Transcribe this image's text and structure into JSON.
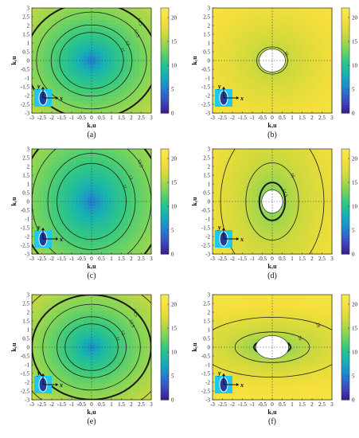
{
  "colors": {
    "colormap": [
      "#3e1b8c",
      "#3b4fc7",
      "#1f8ad0",
      "#17b3b0",
      "#35c97f",
      "#86d556",
      "#cfd93d",
      "#f5df3a",
      "#f7ea4e"
    ],
    "background": "#ffffff",
    "contour_line": "#1a1a1a",
    "inset_bg": "#1ec8ef",
    "hole": "#ffffff"
  },
  "chart_data": [
    {
      "id": "a",
      "type": "heatmap",
      "caption": "(a)",
      "xlabel": "kₓu",
      "ylabel": "kᵧu",
      "xlim": [
        -3,
        3
      ],
      "ylim": [
        -3,
        3
      ],
      "xticks": [
        "-3",
        "-2.5",
        "-2",
        "-1.5",
        "-1",
        "-0.5",
        "0",
        "0.5",
        "1",
        "1.5",
        "2",
        "2.5",
        "3"
      ],
      "yticks": [
        "-3",
        "-2.5",
        "-2",
        "-1.5",
        "-1",
        "-0.5",
        "0",
        "0.5",
        "1",
        "1.5",
        "2",
        "2.5",
        "3"
      ],
      "colorbar": {
        "min": 0,
        "max": 22,
        "ticks": [
          "0",
          "5",
          "10",
          "15",
          "20"
        ]
      },
      "field": {
        "center_value": 3,
        "edge_value": 16,
        "ax": 1.0,
        "ay": 1.0,
        "hole": false
      },
      "contours": [
        {
          "level": 11,
          "label": "11"
        },
        {
          "level": 12,
          "label": "12"
        },
        {
          "level": 13.5,
          "label": "13.5"
        },
        {
          "level": 14.5,
          "label": "14.5",
          "bold": true
        }
      ],
      "inset": {
        "y_label": "y",
        "x_label": "x"
      }
    },
    {
      "id": "b",
      "type": "heatmap",
      "caption": "(b)",
      "xlabel": "kₓu",
      "ylabel": "kᵧu",
      "xlim": [
        -3,
        3
      ],
      "ylim": [
        -3,
        3
      ],
      "xticks": [
        "-3",
        "-2.5",
        "-2",
        "-1.5",
        "-1",
        "-0.5",
        "0",
        "0.5",
        "1",
        "1.5",
        "2",
        "2.5",
        "3"
      ],
      "yticks": [
        "-3",
        "-2.5",
        "-2",
        "-1.5",
        "-1",
        "-0.5",
        "0",
        "0.5",
        "1",
        "1.5",
        "2",
        "2.5",
        "3"
      ],
      "colorbar": {
        "min": 0,
        "max": 22,
        "ticks": [
          "0",
          "5",
          "10",
          "15",
          "20"
        ]
      },
      "field": {
        "center_value": 13,
        "edge_value": 20,
        "ax": 1.0,
        "ay": 1.0,
        "hole": true
      },
      "contours": [
        {
          "level": 13.5,
          "label": "13.5",
          "bold": true
        },
        {
          "level": 14.5,
          "label": "14.5"
        },
        {
          "level": 16,
          "label": "16"
        }
      ],
      "inset": {
        "y_label": "y",
        "x_label": "x"
      }
    },
    {
      "id": "c",
      "type": "heatmap",
      "caption": "(c)",
      "xlabel": "kₓu",
      "ylabel": "kᵧu",
      "xlim": [
        -3,
        3
      ],
      "ylim": [
        -3,
        3
      ],
      "xticks": [
        "-3",
        "-2.5",
        "-2",
        "-1.5",
        "-1",
        "-0.5",
        "0",
        "0.5",
        "1",
        "1.5",
        "2",
        "2.5",
        "3"
      ],
      "yticks": [
        "-3",
        "-2.5",
        "-2",
        "-1.5",
        "-1",
        "-0.5",
        "0",
        "0.5",
        "1",
        "1.5",
        "2",
        "2.5",
        "3"
      ],
      "colorbar": {
        "min": 0,
        "max": 22,
        "ticks": [
          "0",
          "5",
          "10",
          "15",
          "20"
        ]
      },
      "field": {
        "center_value": 3,
        "edge_value": 15.5,
        "ax": 1.0,
        "ay": 0.8,
        "hole": false
      },
      "contours": [
        {
          "level": 11,
          "label": "11"
        },
        {
          "level": 12,
          "label": "12"
        },
        {
          "level": 13.5,
          "label": "13.5"
        },
        {
          "level": 14.5,
          "label": "14.5",
          "bold": true
        }
      ],
      "inset": {
        "y_label": "y",
        "x_label": "x"
      }
    },
    {
      "id": "d",
      "type": "heatmap",
      "caption": "(d)",
      "xlabel": "kₓu",
      "ylabel": "kᵧu",
      "xlim": [
        -3,
        3
      ],
      "ylim": [
        -3,
        3
      ],
      "xticks": [
        "-3",
        "-2.5",
        "-2",
        "-1.5",
        "-1",
        "-0.5",
        "0",
        "0.5",
        "1",
        "1.5",
        "2",
        "2.5",
        "3"
      ],
      "yticks": [
        "-3",
        "-2.5",
        "-2",
        "-1.5",
        "-1",
        "-0.5",
        "0",
        "0.5",
        "1",
        "1.5",
        "2",
        "2.5",
        "3"
      ],
      "colorbar": {
        "min": 0,
        "max": 22,
        "ticks": [
          "0",
          "5",
          "10",
          "15",
          "20"
        ]
      },
      "field": {
        "center_value": 11,
        "edge_value": 19,
        "ax": 1.25,
        "ay": 0.75,
        "hole": true
      },
      "contours": [
        {
          "level": 12,
          "label": "12"
        },
        {
          "level": 13.5,
          "label": "13.5"
        },
        {
          "level": 14.5,
          "label": "14.5",
          "bold": true
        },
        {
          "level": 16,
          "label": "16"
        },
        {
          "level": 18,
          "label": "18"
        }
      ],
      "inset": {
        "y_label": "y",
        "x_label": "x"
      }
    },
    {
      "id": "e",
      "type": "heatmap",
      "caption": "(e)",
      "xlabel": "kₓu",
      "ylabel": "kᵧu",
      "xlim": [
        -3,
        3
      ],
      "ylim": [
        -3,
        3
      ],
      "xticks": [
        "-3",
        "-2.5",
        "-2",
        "-1.5",
        "-1",
        "-0.5",
        "0",
        "0.5",
        "1",
        "1.5",
        "2",
        "2.5",
        "3"
      ],
      "yticks": [
        "-3",
        "-2.5",
        "-2",
        "-1.5",
        "-1",
        "-0.5",
        "0",
        "0.5",
        "1",
        "1.5",
        "2",
        "2.5",
        "3"
      ],
      "colorbar": {
        "min": 0,
        "max": 22,
        "ticks": [
          "0",
          "5",
          "10",
          "15",
          "20"
        ]
      },
      "field": {
        "center_value": 4,
        "edge_value": 16.5,
        "ax": 1.0,
        "ay": 1.0,
        "hole": false
      },
      "contours": [
        {
          "level": 11,
          "label": "11"
        },
        {
          "level": 12,
          "label": "12"
        },
        {
          "level": 13.5,
          "label": "13.5"
        },
        {
          "level": 14.5,
          "label": "14.5",
          "bold": true
        },
        {
          "level": 16,
          "label": "16"
        }
      ],
      "inset": {
        "y_label": "y",
        "x_label": "x"
      }
    },
    {
      "id": "f",
      "type": "heatmap",
      "caption": "(f)",
      "xlabel": "kₓu",
      "ylabel": "kᵧu",
      "xlim": [
        -3,
        3
      ],
      "ylim": [
        -3,
        3
      ],
      "xticks": [
        "-3",
        "-2.5",
        "-2",
        "-1.5",
        "-1",
        "-0.5",
        "0",
        "0.5",
        "1",
        "1.5",
        "2",
        "2.5",
        "3"
      ],
      "yticks": [
        "-3",
        "-2.5",
        "-2",
        "-1.5",
        "-1",
        "-0.5",
        "0",
        "0.5",
        "1",
        "1.5",
        "2",
        "2.5",
        "3"
      ],
      "colorbar": {
        "min": 0,
        "max": 22,
        "ticks": [
          "0",
          "5",
          "10",
          "15",
          "20"
        ]
      },
      "field": {
        "center_value": 11,
        "edge_value": 20,
        "ax": 0.7,
        "ay": 1.5,
        "hole": true
      },
      "contours": [
        {
          "level": 12,
          "label": "12"
        },
        {
          "level": 13.5,
          "label": "13.5"
        },
        {
          "level": 14.5,
          "label": "14.5",
          "bold": true
        },
        {
          "level": 16,
          "label": "16"
        },
        {
          "level": 18,
          "label": "18"
        }
      ],
      "inset": {
        "y_label": "y",
        "x_label": "x"
      }
    }
  ]
}
